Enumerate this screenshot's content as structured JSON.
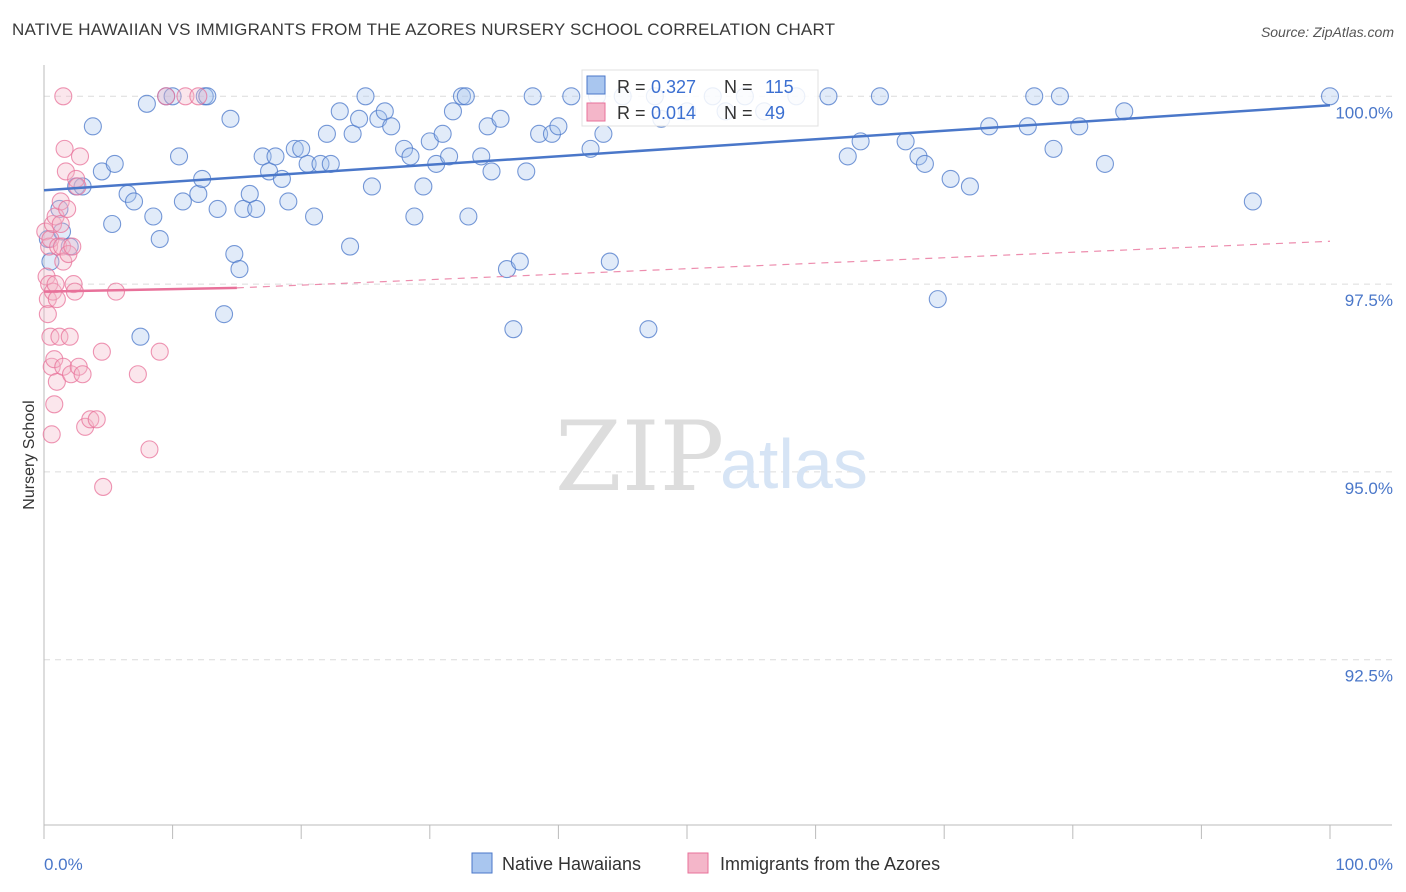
{
  "title": "NATIVE HAWAIIAN VS IMMIGRANTS FROM THE AZORES NURSERY SCHOOL CORRELATION CHART",
  "source": "Source: ZipAtlas.com",
  "watermark": {
    "zip": "ZIP",
    "atlas": "atlas"
  },
  "colors": {
    "blue": "#4a77c9",
    "blue_fill": "#a9c6ef",
    "pink": "#e8719a",
    "pink_fill": "#f4b6c9",
    "grid": "#dcdcdc"
  },
  "chart_data": {
    "type": "scatter",
    "title": "NATIVE HAWAIIAN VS IMMIGRANTS FROM THE AZORES NURSERY SCHOOL CORRELATION CHART",
    "xlabel": "",
    "ylabel": "Nursery School",
    "xlim": [
      0,
      100
    ],
    "ylim": [
      90.3,
      100.35
    ],
    "x_tick_labels": [
      "0.0%",
      "100.0%"
    ],
    "y_ticks": [
      100.0,
      97.5,
      95.0,
      92.5
    ],
    "y_tick_labels": [
      "100.0%",
      "97.5%",
      "95.0%",
      "92.5%"
    ],
    "legend": [
      {
        "name": "Native Hawaiians",
        "r_label": "R = ",
        "r": "0.327",
        "n_label": "N = ",
        "n": "115"
      },
      {
        "name": "Immigrants from the Azores",
        "r_label": "R = ",
        "r": "0.014",
        "n_label": "N = ",
        "n": "49"
      }
    ],
    "series": [
      {
        "name": "Native Hawaiians",
        "color": "blue",
        "trend": {
          "x": [
            0,
            100
          ],
          "y": [
            98.75,
            99.88
          ],
          "style": "solid"
        },
        "points": [
          [
            0.3,
            98.1
          ],
          [
            0.5,
            97.8
          ],
          [
            1.2,
            98.5
          ],
          [
            1.4,
            98.2
          ],
          [
            2.0,
            98.0
          ],
          [
            2.5,
            98.8
          ],
          [
            3.0,
            98.8
          ],
          [
            3.8,
            99.6
          ],
          [
            4.5,
            99.0
          ],
          [
            5.5,
            99.1
          ],
          [
            5.3,
            98.3
          ],
          [
            6.5,
            98.7
          ],
          [
            7.0,
            98.6
          ],
          [
            7.5,
            96.8
          ],
          [
            8.0,
            99.9
          ],
          [
            8.5,
            98.4
          ],
          [
            9.0,
            98.1
          ],
          [
            9.5,
            100.0
          ],
          [
            10.0,
            100.0
          ],
          [
            10.5,
            99.2
          ],
          [
            10.8,
            98.6
          ],
          [
            12.0,
            98.7
          ],
          [
            12.5,
            100.0
          ],
          [
            12.7,
            100.0
          ],
          [
            12.3,
            98.9
          ],
          [
            13.5,
            98.5
          ],
          [
            14.0,
            97.1
          ],
          [
            14.5,
            99.7
          ],
          [
            14.8,
            97.9
          ],
          [
            15.2,
            97.7
          ],
          [
            15.5,
            98.5
          ],
          [
            16.0,
            98.7
          ],
          [
            16.5,
            98.5
          ],
          [
            17.0,
            99.2
          ],
          [
            17.5,
            99.0
          ],
          [
            18.0,
            99.2
          ],
          [
            18.5,
            98.9
          ],
          [
            19.0,
            98.6
          ],
          [
            19.5,
            99.3
          ],
          [
            20.0,
            99.3
          ],
          [
            20.5,
            99.1
          ],
          [
            21.0,
            98.4
          ],
          [
            21.5,
            99.1
          ],
          [
            22.0,
            99.5
          ],
          [
            22.3,
            99.1
          ],
          [
            23.0,
            99.8
          ],
          [
            23.8,
            98.0
          ],
          [
            24.0,
            99.5
          ],
          [
            24.5,
            99.7
          ],
          [
            25.0,
            100.0
          ],
          [
            25.5,
            98.8
          ],
          [
            26.0,
            99.7
          ],
          [
            26.5,
            99.8
          ],
          [
            27.0,
            99.6
          ],
          [
            28.0,
            99.3
          ],
          [
            28.5,
            99.2
          ],
          [
            28.8,
            98.4
          ],
          [
            29.5,
            98.8
          ],
          [
            30.0,
            99.4
          ],
          [
            30.5,
            99.1
          ],
          [
            31.0,
            99.5
          ],
          [
            31.5,
            99.2
          ],
          [
            31.8,
            99.8
          ],
          [
            32.5,
            100.0
          ],
          [
            33.0,
            98.4
          ],
          [
            32.8,
            100.0
          ],
          [
            34.0,
            99.2
          ],
          [
            34.5,
            99.6
          ],
          [
            34.8,
            99.0
          ],
          [
            35.5,
            99.7
          ],
          [
            36.0,
            97.7
          ],
          [
            36.5,
            96.9
          ],
          [
            37.0,
            97.8
          ],
          [
            37.5,
            99.0
          ],
          [
            38.0,
            100.0
          ],
          [
            38.5,
            99.5
          ],
          [
            39.5,
            99.5
          ],
          [
            40.0,
            99.6
          ],
          [
            41.0,
            100.0
          ],
          [
            42.5,
            99.3
          ],
          [
            43.0,
            100.0
          ],
          [
            43.5,
            99.5
          ],
          [
            44.0,
            97.8
          ],
          [
            45.0,
            100.0
          ],
          [
            47.0,
            96.9
          ],
          [
            47.5,
            100.0
          ],
          [
            48.0,
            99.7
          ],
          [
            50.0,
            99.8
          ],
          [
            52.0,
            100.0
          ],
          [
            53.0,
            99.8
          ],
          [
            54.5,
            100.0
          ],
          [
            56.0,
            99.8
          ],
          [
            58.5,
            100.0
          ],
          [
            61.0,
            100.0
          ],
          [
            62.5,
            99.2
          ],
          [
            63.5,
            99.4
          ],
          [
            65.0,
            100.0
          ],
          [
            67.0,
            99.4
          ],
          [
            68.0,
            99.2
          ],
          [
            68.5,
            99.1
          ],
          [
            69.5,
            97.3
          ],
          [
            70.5,
            98.9
          ],
          [
            72.0,
            98.8
          ],
          [
            73.5,
            99.6
          ],
          [
            76.5,
            99.6
          ],
          [
            77.0,
            100.0
          ],
          [
            78.5,
            99.3
          ],
          [
            79.0,
            100.0
          ],
          [
            80.5,
            99.6
          ],
          [
            82.5,
            99.1
          ],
          [
            84.0,
            99.8
          ],
          [
            94.0,
            98.6
          ],
          [
            100.0,
            100.0
          ]
        ]
      },
      {
        "name": "Immigrants from the Azores",
        "color": "pink",
        "trend": {
          "x": [
            0,
            15,
            100
          ],
          "y": [
            97.4,
            97.45,
            98.07
          ],
          "style": "solid-then-dashed"
        },
        "points": [
          [
            0.1,
            98.2
          ],
          [
            0.2,
            97.6
          ],
          [
            0.3,
            97.3
          ],
          [
            0.3,
            97.1
          ],
          [
            0.4,
            98.0
          ],
          [
            0.4,
            97.5
          ],
          [
            0.5,
            98.1
          ],
          [
            0.5,
            96.8
          ],
          [
            0.6,
            96.4
          ],
          [
            0.6,
            95.5
          ],
          [
            0.7,
            98.3
          ],
          [
            0.7,
            97.4
          ],
          [
            0.8,
            96.5
          ],
          [
            0.8,
            95.9
          ],
          [
            0.9,
            98.4
          ],
          [
            0.9,
            97.5
          ],
          [
            1.0,
            97.3
          ],
          [
            1.0,
            96.2
          ],
          [
            1.1,
            98.0
          ],
          [
            1.2,
            96.8
          ],
          [
            1.3,
            98.6
          ],
          [
            1.3,
            98.3
          ],
          [
            1.4,
            98.0
          ],
          [
            1.5,
            97.8
          ],
          [
            1.5,
            96.4
          ],
          [
            1.6,
            99.3
          ],
          [
            1.7,
            99.0
          ],
          [
            1.8,
            98.5
          ],
          [
            1.9,
            97.9
          ],
          [
            2.0,
            96.8
          ],
          [
            2.1,
            96.3
          ],
          [
            2.2,
            98.0
          ],
          [
            2.3,
            97.5
          ],
          [
            2.4,
            97.4
          ],
          [
            2.5,
            98.9
          ],
          [
            2.6,
            98.8
          ],
          [
            2.7,
            96.4
          ],
          [
            2.8,
            99.2
          ],
          [
            3.0,
            96.3
          ],
          [
            3.2,
            95.6
          ],
          [
            3.6,
            95.7
          ],
          [
            4.1,
            95.7
          ],
          [
            4.5,
            96.6
          ],
          [
            4.6,
            94.8
          ],
          [
            5.6,
            97.4
          ],
          [
            7.3,
            96.3
          ],
          [
            8.2,
            95.3
          ],
          [
            9.0,
            96.6
          ],
          [
            9.5,
            100.0
          ],
          [
            11.0,
            100.0
          ],
          [
            12.0,
            100.0
          ],
          [
            1.5,
            100.0
          ]
        ]
      }
    ]
  }
}
